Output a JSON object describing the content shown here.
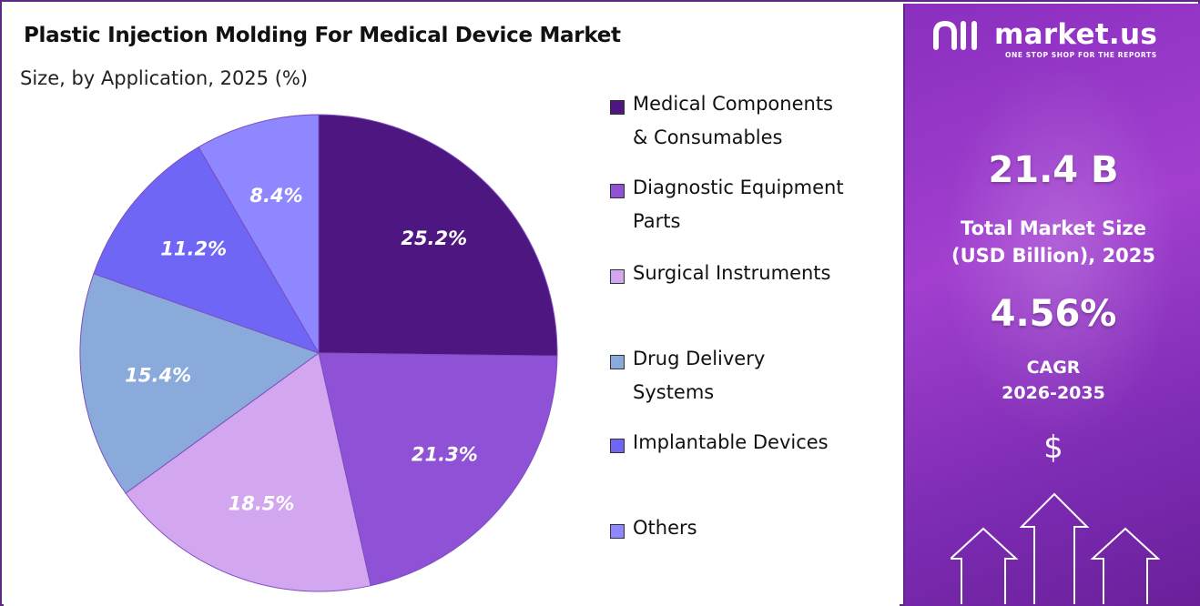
{
  "header": {
    "title": "Plastic Injection Molding For Medical Device Market",
    "subtitle": "Size, by Application, 2025 (%)"
  },
  "chart_data": {
    "type": "pie",
    "title": "Plastic Injection Molding For Medical Device Market",
    "subtitle": "Size, by Application, 2025 (%)",
    "legend_position": "right",
    "slices": [
      {
        "name": "Medical Components & Consumables",
        "value": 25.2,
        "label": "25.2%",
        "color": "#4e1680"
      },
      {
        "name": "Diagnostic Equipment Parts",
        "value": 21.3,
        "label": "21.3%",
        "color": "#8f52d6"
      },
      {
        "name": "Surgical Instruments",
        "value": 18.5,
        "label": "18.5%",
        "color": "#d3a7ef"
      },
      {
        "name": "Drug Delivery Systems",
        "value": 15.4,
        "label": "15.4%",
        "color": "#8aaadb"
      },
      {
        "name": "Implantable Devices",
        "value": 11.2,
        "label": "11.2%",
        "color": "#6f66f5"
      },
      {
        "name": "Others",
        "value": 8.4,
        "label": "8.4%",
        "color": "#8e87ff"
      }
    ]
  },
  "legend": [
    {
      "lines": [
        "Medical Components",
        "& Consumables"
      ]
    },
    {
      "lines": [
        "Diagnostic Equipment",
        "Parts"
      ]
    },
    {
      "lines": [
        "Surgical Instruments"
      ]
    },
    {
      "lines": [
        "Drug Delivery",
        "Systems"
      ]
    },
    {
      "lines": [
        "Implantable Devices"
      ]
    },
    {
      "lines": [
        "Others"
      ]
    }
  ],
  "sidebar": {
    "brand": "market.us",
    "tagline": "ONE STOP SHOP FOR THE REPORTS",
    "market_size": "21.4 B",
    "market_size_label_1": "Total Market Size",
    "market_size_label_2": "(USD Billion), 2025",
    "cagr": "4.56%",
    "cagr_label_1": "CAGR",
    "cagr_label_2": "2026-2035",
    "dollar_icon": "$"
  }
}
